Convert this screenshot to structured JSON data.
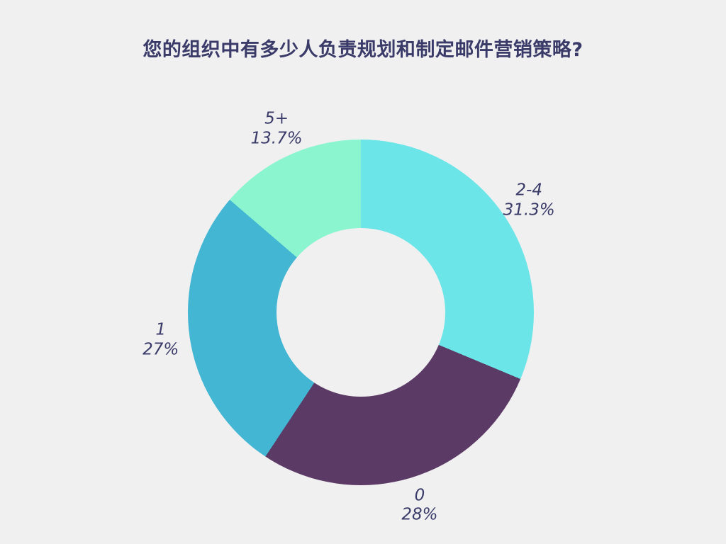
{
  "page": {
    "background_color": "#F0F0F1",
    "text_color": "#3A3B69"
  },
  "chart_data": {
    "type": "pie",
    "subtype": "donut",
    "title": "您的组织中有多少人负责规划和制定邮件营销策略?",
    "categories": [
      "2-4",
      "0",
      "1",
      "5+"
    ],
    "values": [
      31.3,
      28,
      27,
      13.7
    ],
    "percent_labels": [
      "31.3%",
      "28%",
      "27%",
      "13.7%"
    ],
    "colors": [
      "#6CE5E8",
      "#5C3A66",
      "#42B6D3",
      "#8BF5D0"
    ],
    "start_angle_deg": 0,
    "direction": "clockwise",
    "inner_radius_ratio": 0.49,
    "legend": "none",
    "label_position": "outside"
  }
}
